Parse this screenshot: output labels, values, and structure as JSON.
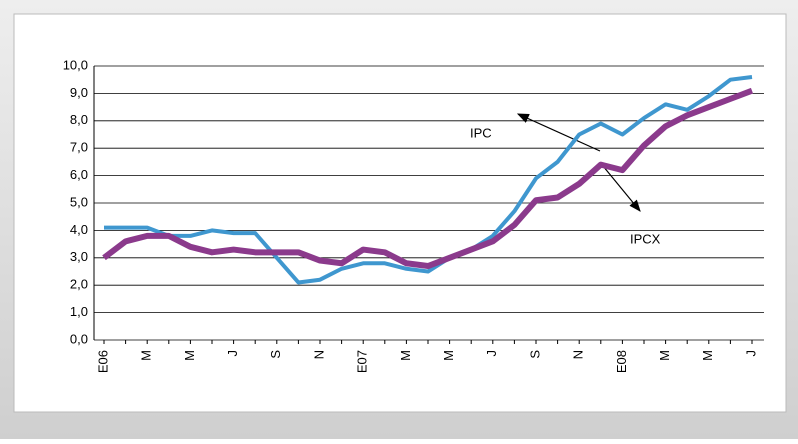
{
  "chart_data": {
    "type": "line",
    "categories": [
      "E06",
      null,
      "M",
      null,
      "M",
      null,
      "J",
      null,
      "S",
      null,
      "N",
      null,
      "E07",
      null,
      "M",
      null,
      "M",
      null,
      "J",
      null,
      "S",
      null,
      "N",
      null,
      "E08",
      null,
      "M",
      null,
      "M",
      null,
      "J"
    ],
    "series": [
      {
        "name": "IPC",
        "color": "#3f97cf",
        "values": [
          4.1,
          4.1,
          4.1,
          3.8,
          3.8,
          4.0,
          3.9,
          3.9,
          3.0,
          2.1,
          2.2,
          2.6,
          2.8,
          2.8,
          2.6,
          2.5,
          3.0,
          3.3,
          3.8,
          4.7,
          5.9,
          6.5,
          7.5,
          7.9,
          7.5,
          8.1,
          8.6,
          8.4,
          8.9,
          9.5,
          9.6
        ]
      },
      {
        "name": "IPCX",
        "color": "#8b3a8c",
        "values": [
          3.0,
          3.6,
          3.8,
          3.8,
          3.4,
          3.2,
          3.3,
          3.2,
          3.2,
          3.2,
          2.9,
          2.8,
          3.3,
          3.2,
          2.8,
          2.7,
          3.0,
          3.3,
          3.6,
          4.2,
          5.1,
          5.2,
          5.7,
          6.4,
          6.2,
          7.1,
          7.8,
          8.2,
          8.5,
          8.8,
          9.1
        ]
      }
    ],
    "ylim": [
      0,
      10
    ],
    "yticks": [
      {
        "value": 0,
        "label": "0,0"
      },
      {
        "value": 1,
        "label": "1,0"
      },
      {
        "value": 2,
        "label": "2,0"
      },
      {
        "value": 3,
        "label": "3,0"
      },
      {
        "value": 4,
        "label": "4,0"
      },
      {
        "value": 5,
        "label": "5,0"
      },
      {
        "value": 6,
        "label": "6,0"
      },
      {
        "value": 7,
        "label": "7,0"
      },
      {
        "value": 8,
        "label": "8,0"
      },
      {
        "value": 9,
        "label": "9,0"
      },
      {
        "value": 10,
        "label": "10,0"
      }
    ],
    "grid": true
  }
}
